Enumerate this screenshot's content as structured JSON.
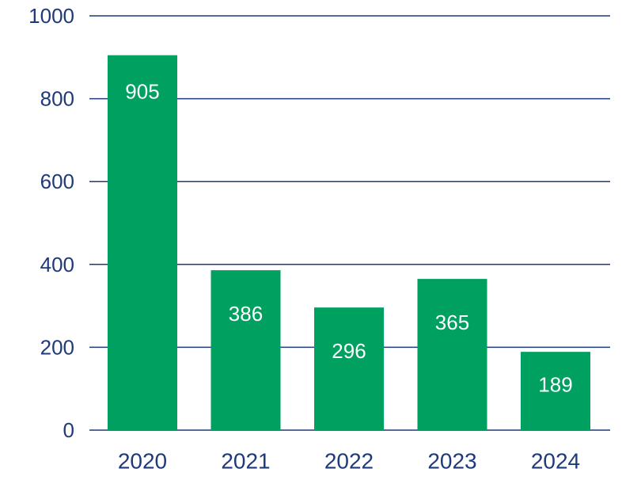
{
  "chart_data": {
    "type": "bar",
    "categories": [
      "2020",
      "2021",
      "2022",
      "2023",
      "2024"
    ],
    "values": [
      905,
      386,
      296,
      365,
      189
    ],
    "data_labels": [
      "905",
      "386",
      "296",
      "365",
      "189"
    ],
    "title": "",
    "xlabel": "",
    "ylabel": "",
    "ylim": [
      0,
      1000
    ],
    "yticks": [
      0,
      200,
      400,
      600,
      800,
      1000
    ],
    "ytick_labels": [
      "0",
      "200",
      "400",
      "600",
      "800",
      "1000"
    ],
    "grid": true,
    "legend": "none",
    "bar_color": "#00a160",
    "axis_text_color": "#1f3a78",
    "gridline_color": "#1f3a78",
    "data_label_color": "#ffffff"
  }
}
